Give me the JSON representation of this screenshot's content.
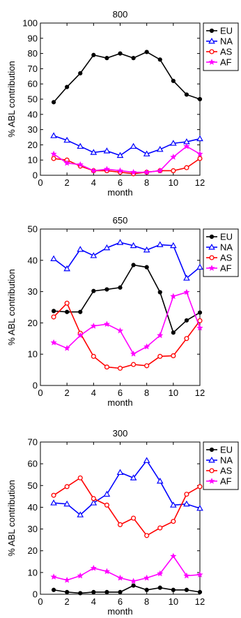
{
  "chart_data": [
    {
      "type": "line",
      "title": "800",
      "xlabel": "month",
      "ylabel": "% ABL contribution",
      "xlim": [
        0,
        12
      ],
      "ylim": [
        0,
        100
      ],
      "xticks": [
        0,
        2,
        4,
        6,
        8,
        10,
        12
      ],
      "yticks": [
        0,
        10,
        20,
        30,
        40,
        50,
        60,
        70,
        80,
        90,
        100
      ],
      "legend_position": "outside-top-right",
      "x": [
        1,
        2,
        3,
        4,
        5,
        6,
        7,
        8,
        9,
        10,
        11,
        12
      ],
      "series": [
        {
          "name": "EU",
          "color": "#000000",
          "marker": "dot",
          "values": [
            48,
            58,
            67,
            79,
            77,
            80,
            77,
            81,
            76,
            62,
            53,
            50
          ]
        },
        {
          "name": "NA",
          "color": "#0000ff",
          "marker": "triangle",
          "values": [
            26,
            23,
            19,
            15,
            16,
            13,
            19,
            14,
            17,
            21,
            22,
            24
          ]
        },
        {
          "name": "AS",
          "color": "#ff0000",
          "marker": "circle",
          "values": [
            11,
            10,
            6,
            3,
            3,
            2,
            1,
            2,
            3,
            3,
            5,
            11
          ]
        },
        {
          "name": "AF",
          "color": "#ff00ff",
          "marker": "star",
          "values": [
            14,
            8,
            7,
            3,
            4,
            3,
            2,
            2,
            3,
            12,
            19,
            14
          ]
        }
      ]
    },
    {
      "type": "line",
      "title": "650",
      "xlabel": "month",
      "ylabel": "% ABL contribution",
      "xlim": [
        0,
        12
      ],
      "ylim": [
        0,
        50
      ],
      "xticks": [
        0,
        2,
        4,
        6,
        8,
        10,
        12
      ],
      "yticks": [
        0,
        10,
        20,
        30,
        40,
        50
      ],
      "legend_position": "outside-top-right",
      "x": [
        1,
        2,
        3,
        4,
        5,
        6,
        7,
        8,
        9,
        10,
        11,
        12
      ],
      "series": [
        {
          "name": "EU",
          "color": "#000000",
          "marker": "dot",
          "values": [
            23.8,
            23.5,
            23.5,
            30.2,
            30.7,
            31.3,
            38.5,
            37.8,
            29.8,
            16.9,
            20.8,
            23.3
          ]
        },
        {
          "name": "NA",
          "color": "#0000ff",
          "marker": "triangle",
          "values": [
            40.5,
            37.3,
            43.5,
            41.5,
            44.0,
            45.7,
            44.7,
            43.3,
            45.0,
            44.7,
            34.3,
            37.8
          ]
        },
        {
          "name": "AS",
          "color": "#ff0000",
          "marker": "circle",
          "values": [
            21.9,
            26.3,
            16.7,
            9.3,
            5.9,
            5.5,
            6.7,
            6.3,
            9.3,
            9.5,
            15.0,
            20.7
          ]
        },
        {
          "name": "AF",
          "color": "#ff00ff",
          "marker": "star",
          "values": [
            13.7,
            11.9,
            16.0,
            19.0,
            19.6,
            17.5,
            10.1,
            12.4,
            16.0,
            28.5,
            29.8,
            18.4
          ]
        }
      ]
    },
    {
      "type": "line",
      "title": "300",
      "xlabel": "month",
      "ylabel": "% ABL contribution",
      "xlim": [
        0,
        12
      ],
      "ylim": [
        0,
        70
      ],
      "xticks": [
        0,
        2,
        4,
        6,
        8,
        10,
        12
      ],
      "yticks": [
        0,
        10,
        20,
        30,
        40,
        50,
        60,
        70
      ],
      "legend_position": "outside-top-right",
      "x": [
        1,
        2,
        3,
        4,
        5,
        6,
        7,
        8,
        9,
        10,
        11,
        12
      ],
      "series": [
        {
          "name": "EU",
          "color": "#000000",
          "marker": "dot",
          "values": [
            2,
            1,
            0.5,
            1,
            1,
            1,
            4,
            2,
            3,
            2,
            2,
            1
          ]
        },
        {
          "name": "NA",
          "color": "#0000ff",
          "marker": "triangle",
          "values": [
            42,
            41.5,
            36.5,
            42,
            46,
            56,
            53.5,
            61.5,
            52,
            41,
            41.5,
            39.5
          ]
        },
        {
          "name": "AS",
          "color": "#ff0000",
          "marker": "circle",
          "values": [
            45.5,
            49.5,
            53.5,
            44,
            41,
            32,
            35,
            27,
            30.5,
            33.5,
            46,
            49.5
          ]
        },
        {
          "name": "AF",
          "color": "#ff00ff",
          "marker": "star",
          "values": [
            8,
            6.5,
            8.5,
            12,
            10.5,
            7.5,
            6,
            7.5,
            9.5,
            17.5,
            8.5,
            9
          ]
        }
      ]
    }
  ]
}
